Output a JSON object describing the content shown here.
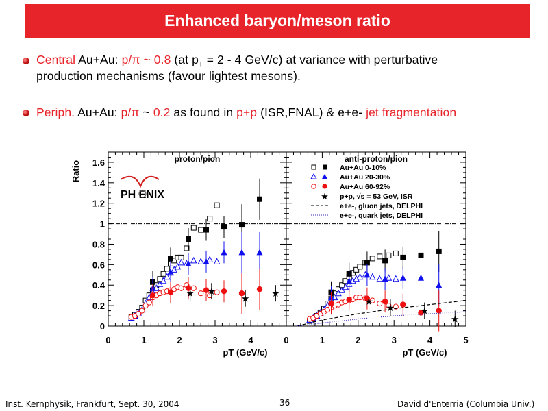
{
  "title": "Enhanced baryon/meson ratio",
  "bullets": [
    {
      "b1": "Central",
      "b2": " Au+Au: ",
      "b3": "p/π ~ 0.8",
      "b4": " (at p",
      "b4sub": "T",
      "b5": " = 2 - 4 GeV/c) at variance with perturbative",
      "cont": "production mechanisms (favour lightest mesons)."
    },
    {
      "b1": "Periph.",
      "b2": " Au+Au: ",
      "b3": "p/π",
      "b4": " ~ ",
      "b5": "0.2",
      "b6": "  as found in ",
      "b7": "p+p",
      "b8": " (ISR,FNAL) & e+e- ",
      "b9": "jet fragmentation"
    }
  ],
  "colors": {
    "accent": "#e8242b",
    "bullet": "#d01c1c"
  },
  "footer": {
    "left": "Inst. Kernphysik, Frankfurt, Sept. 30, 2004",
    "page": "36",
    "right": "David d'Enterria (Columbia Univ.)"
  },
  "chart_data": [
    {
      "type": "scatter",
      "title": "proton/pion",
      "ylabel": "Ratio",
      "xlabel": "pT (GeV/c)",
      "xlim": [
        0,
        5
      ],
      "ylim": [
        0,
        1.7
      ],
      "xticks": [
        "0",
        "1",
        "2",
        "3",
        "4"
      ],
      "yticks": [
        "0",
        "0.2",
        "0.4",
        "0.6",
        "0.8",
        "1",
        "1.2",
        "1.4",
        "1.6"
      ],
      "logo": "PH ENIX",
      "reference_line": 1.0,
      "series": [
        {
          "name": "Au+Au 0-10%",
          "marker": "square-open",
          "x": [
            0.65,
            0.75,
            0.85,
            0.95,
            1.05,
            1.15,
            1.25,
            1.35,
            1.45,
            1.55,
            1.65,
            1.75,
            1.85,
            1.95,
            2.05,
            2.2,
            2.4,
            2.6,
            2.85,
            3.05
          ],
          "y": [
            0.09,
            0.11,
            0.14,
            0.18,
            0.25,
            0.3,
            0.35,
            0.4,
            0.46,
            0.51,
            0.56,
            0.61,
            0.64,
            0.67,
            0.67,
            0.76,
            0.96,
            0.94,
            1.05,
            1.18
          ]
        },
        {
          "name": "Au+Au 0-10%",
          "marker": "square-filled",
          "x": [
            1.25,
            1.75,
            2.25,
            2.75,
            3.25,
            3.75,
            4.25
          ],
          "y": [
            0.43,
            0.66,
            0.85,
            0.94,
            0.97,
            0.99,
            1.24
          ]
        },
        {
          "name": "Au+Au 20-30%",
          "marker": "triangle-open",
          "x": [
            0.65,
            0.75,
            0.85,
            0.95,
            1.05,
            1.15,
            1.25,
            1.35,
            1.45,
            1.55,
            1.65,
            1.75,
            1.85,
            1.95,
            2.05,
            2.2,
            2.4,
            2.6,
            2.85,
            3.05
          ],
          "y": [
            0.08,
            0.1,
            0.13,
            0.16,
            0.22,
            0.28,
            0.33,
            0.37,
            0.41,
            0.44,
            0.48,
            0.52,
            0.55,
            0.58,
            0.62,
            0.61,
            0.64,
            0.63,
            0.65,
            0.63
          ]
        },
        {
          "name": "Au+Au 20-30%",
          "marker": "triangle-filled",
          "x": [
            1.25,
            1.75,
            2.25,
            2.75,
            3.25,
            3.75,
            4.25
          ],
          "y": [
            0.37,
            0.53,
            0.61,
            0.63,
            0.72,
            0.72,
            0.72
          ]
        },
        {
          "name": "Au+Au 60-92%",
          "marker": "circle-open",
          "x": [
            0.65,
            0.75,
            0.85,
            0.95,
            1.05,
            1.15,
            1.25,
            1.35,
            1.45,
            1.55,
            1.65,
            1.75,
            1.85,
            1.95,
            2.05,
            2.2,
            2.4,
            2.6,
            2.85,
            3.05
          ],
          "y": [
            0.09,
            0.1,
            0.12,
            0.15,
            0.2,
            0.23,
            0.28,
            0.3,
            0.32,
            0.33,
            0.34,
            0.35,
            0.36,
            0.38,
            0.37,
            0.4,
            0.37,
            0.32,
            0.3,
            0.33
          ]
        },
        {
          "name": "Au+Au 60-92%",
          "marker": "circle-filled",
          "x": [
            1.25,
            1.75,
            2.25,
            2.75,
            3.25,
            3.75,
            4.25
          ],
          "y": [
            0.3,
            0.33,
            0.37,
            0.35,
            0.34,
            0.32,
            0.36
          ]
        },
        {
          "name": "p+p, √s = 53 GeV, ISR",
          "marker": "star",
          "x": [
            2.3,
            2.9,
            3.85,
            4.7
          ],
          "y": [
            0.32,
            0.34,
            0.27,
            0.32
          ]
        }
      ]
    },
    {
      "type": "scatter",
      "title": "anti-proton/pion",
      "xlabel": "pT (GeV/c)",
      "xlim": [
        0,
        5
      ],
      "ylim": [
        0,
        1.7
      ],
      "xticks": [
        "0",
        "1",
        "2",
        "3",
        "4",
        "5"
      ],
      "reference_line": 1.0,
      "legend_position": "top-right",
      "legend": [
        {
          "label": "Au+Au 0-10%",
          "marker": "square"
        },
        {
          "label": "Au+Au 20-30%",
          "marker": "triangle"
        },
        {
          "label": "Au+Au 60-92%",
          "marker": "circle"
        },
        {
          "label": "p+p, √s = 53 GeV, ISR",
          "marker": "star"
        },
        {
          "label": "e+e-, gluon jets, DELPHI",
          "marker": "dash"
        },
        {
          "label": "e+e-, quark jets, DELPHI",
          "marker": "dot"
        }
      ],
      "series": [
        {
          "name": "Au+Au 0-10%",
          "marker": "square-open",
          "x": [
            0.65,
            0.75,
            0.85,
            0.95,
            1.05,
            1.15,
            1.25,
            1.35,
            1.45,
            1.55,
            1.65,
            1.75,
            1.85,
            1.95,
            2.05,
            2.2,
            2.4,
            2.6,
            2.85,
            3.05
          ],
          "y": [
            0.05,
            0.07,
            0.1,
            0.13,
            0.17,
            0.22,
            0.27,
            0.32,
            0.36,
            0.4,
            0.44,
            0.48,
            0.52,
            0.55,
            0.58,
            0.62,
            0.66,
            0.68,
            0.69,
            0.71
          ]
        },
        {
          "name": "Au+Au 0-10%",
          "marker": "square-filled",
          "x": [
            1.25,
            1.75,
            2.25,
            2.75,
            3.25,
            3.75,
            4.25
          ],
          "y": [
            0.33,
            0.51,
            0.62,
            0.64,
            0.67,
            0.69,
            0.73
          ]
        },
        {
          "name": "Au+Au 20-30%",
          "marker": "triangle-open",
          "x": [
            0.65,
            0.75,
            0.85,
            0.95,
            1.05,
            1.15,
            1.25,
            1.35,
            1.45,
            1.55,
            1.65,
            1.75,
            1.85,
            1.95,
            2.05,
            2.2,
            2.4,
            2.6,
            2.85,
            3.05
          ],
          "y": [
            0.06,
            0.08,
            0.1,
            0.13,
            0.16,
            0.2,
            0.24,
            0.28,
            0.32,
            0.35,
            0.38,
            0.41,
            0.44,
            0.46,
            0.48,
            0.5,
            0.48,
            0.46,
            0.47,
            0.46
          ]
        },
        {
          "name": "Au+Au 20-30%",
          "marker": "triangle-filled",
          "x": [
            1.25,
            1.75,
            2.25,
            2.75,
            3.25,
            3.75,
            4.25
          ],
          "y": [
            0.28,
            0.44,
            0.5,
            0.46,
            0.47,
            0.47,
            0.4
          ]
        },
        {
          "name": "Au+Au 60-92%",
          "marker": "circle-open",
          "x": [
            0.65,
            0.75,
            0.85,
            0.95,
            1.05,
            1.15,
            1.25,
            1.35,
            1.45,
            1.55,
            1.65,
            1.75,
            1.85,
            1.95,
            2.05,
            2.2,
            2.4,
            2.6,
            2.85,
            3.05
          ],
          "y": [
            0.07,
            0.08,
            0.1,
            0.12,
            0.14,
            0.16,
            0.18,
            0.2,
            0.21,
            0.23,
            0.24,
            0.25,
            0.26,
            0.28,
            0.28,
            0.27,
            0.25,
            0.22,
            0.2,
            0.19
          ]
        },
        {
          "name": "Au+Au 60-92%",
          "marker": "circle-filled",
          "x": [
            1.25,
            1.75,
            2.25,
            2.75,
            3.25,
            3.75,
            4.25
          ],
          "y": [
            0.22,
            0.26,
            0.27,
            0.24,
            0.21,
            0.13,
            0.15
          ]
        },
        {
          "name": "p+p, √s = 53 GeV, ISR",
          "marker": "star",
          "x": [
            2.3,
            2.9,
            3.85,
            4.7
          ],
          "y": [
            0.24,
            0.18,
            0.15,
            0.07
          ]
        },
        {
          "name": "e+e-, gluon jets, DELPHI",
          "marker": "line-dashed",
          "x": [
            0.3,
            1,
            2,
            3,
            4,
            5
          ],
          "y": [
            0.0,
            0.06,
            0.12,
            0.17,
            0.21,
            0.25
          ]
        },
        {
          "name": "e+e-, quark jets, DELPHI",
          "marker": "line-dotted",
          "x": [
            0.3,
            1,
            2,
            3,
            4,
            5
          ],
          "y": [
            0.0,
            0.03,
            0.07,
            0.1,
            0.12,
            0.14
          ]
        }
      ]
    }
  ]
}
